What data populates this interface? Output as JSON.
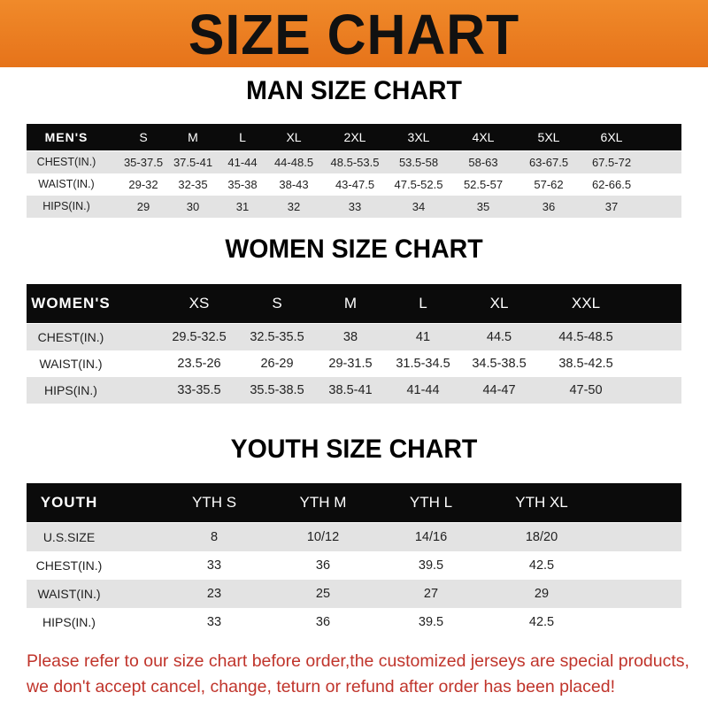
{
  "banner": {
    "title": "SIZE CHART",
    "color": "#ea7b22"
  },
  "men": {
    "heading": "MAN SIZE CHART",
    "header": [
      "MEN'S",
      "S",
      "M",
      "L",
      "XL",
      "2XL",
      "3XL",
      "4XL",
      "5XL",
      "6XL"
    ],
    "rows": [
      [
        "CHEST(IN.)",
        "35-37.5",
        "37.5-41",
        "41-44",
        "44-48.5",
        "48.5-53.5",
        "53.5-58",
        "58-63",
        "63-67.5",
        "67.5-72"
      ],
      [
        "WAIST(IN.)",
        "29-32",
        "32-35",
        "35-38",
        "38-43",
        "43-47.5",
        "47.5-52.5",
        "52.5-57",
        "57-62",
        "62-66.5"
      ],
      [
        "HIPS(IN.)",
        "29",
        "30",
        "31",
        "32",
        "33",
        "34",
        "35",
        "36",
        "37"
      ]
    ]
  },
  "women": {
    "heading": "WOMEN SIZE CHART",
    "header": [
      "WOMEN'S",
      "XS",
      "S",
      "M",
      "L",
      "XL",
      "XXL"
    ],
    "rows": [
      [
        "CHEST(IN.)",
        "29.5-32.5",
        "32.5-35.5",
        "38",
        "41",
        "44.5",
        "44.5-48.5"
      ],
      [
        "WAIST(IN.)",
        "23.5-26",
        "26-29",
        "29-31.5",
        "31.5-34.5",
        "34.5-38.5",
        "38.5-42.5"
      ],
      [
        "HIPS(IN.)",
        "33-35.5",
        "35.5-38.5",
        "38.5-41",
        "41-44",
        "44-47",
        "47-50"
      ]
    ]
  },
  "youth": {
    "heading": "YOUTH SIZE CHART",
    "header": [
      "YOUTH",
      "YTH S",
      "YTH M",
      "YTH L",
      "YTH XL"
    ],
    "rows": [
      [
        "U.S.SIZE",
        "8",
        "10/12",
        "14/16",
        "18/20"
      ],
      [
        "CHEST(IN.)",
        "33",
        "36",
        "39.5",
        "42.5"
      ],
      [
        "WAIST(IN.)",
        "23",
        "25",
        "27",
        "29"
      ],
      [
        "HIPS(IN.)",
        "33",
        "36",
        "39.5",
        "42.5"
      ]
    ]
  },
  "footer": {
    "line1": "Please refer to our size chart before order,the customized jerseys are special products,",
    "line2": "we don't accept cancel, change, teturn or refund after order has been placed!",
    "color": "#c0342b"
  }
}
